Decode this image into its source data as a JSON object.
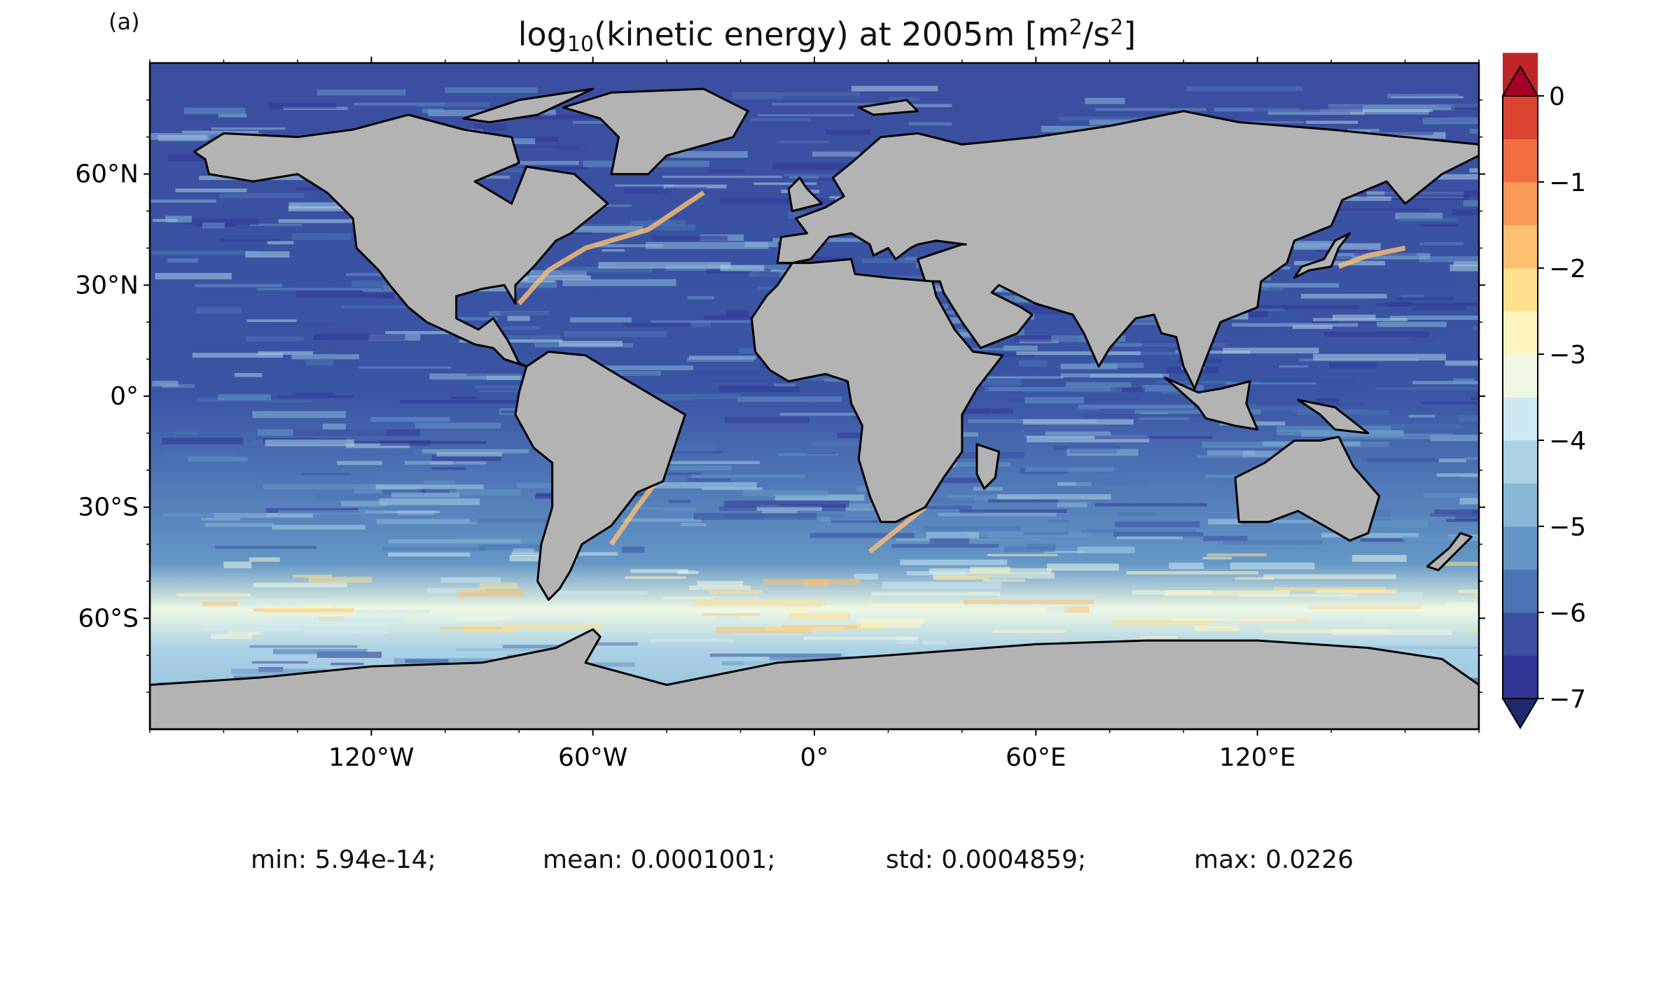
{
  "panel_label": "(a)",
  "title": {
    "pre": "log",
    "sub": "10",
    "mid": "(kinetic energy) at 2005m [m",
    "sup1": "2",
    "mid2": "/s",
    "sup2": "2",
    "post": "]"
  },
  "map": {
    "projection": "plate-carree",
    "lon_range": [
      -180,
      180
    ],
    "lat_range": [
      -90,
      90
    ],
    "land_color": "#b3b3b3",
    "coastline_color": "#000000",
    "no_data_color": "#ffffff",
    "lat_ticks": [
      {
        "value": 60,
        "label": "60°N"
      },
      {
        "value": 30,
        "label": "30°N"
      },
      {
        "value": 0,
        "label": "0°"
      },
      {
        "value": -30,
        "label": "30°S"
      },
      {
        "value": -60,
        "label": "60°S"
      }
    ],
    "lon_ticks": [
      {
        "value": -120,
        "label": "120°W"
      },
      {
        "value": -60,
        "label": "60°W"
      },
      {
        "value": 0,
        "label": "0°"
      },
      {
        "value": 60,
        "label": "60°E"
      },
      {
        "value": 120,
        "label": "120°E"
      }
    ]
  },
  "chart_data": {
    "type": "heatmap",
    "variable": "log10(kinetic energy) at 2005m [m2/s2]",
    "colorbar": {
      "min": -7,
      "max": 0,
      "extend": "both",
      "levels_step": 0.5,
      "tick_values": [
        0,
        -1,
        -2,
        -3,
        -4,
        -5,
        -6,
        -7
      ],
      "tick_labels": [
        "0",
        "−1",
        "−2",
        "−3",
        "−4",
        "−5",
        "−6",
        "−7"
      ],
      "colors": [
        "#313695",
        "#3b4ea0",
        "#4a74b4",
        "#6497c6",
        "#8ab9d8",
        "#abd1e5",
        "#cfe9f2",
        "#eef8e4",
        "#fff5be",
        "#fee08f",
        "#fdc070",
        "#fa9a58",
        "#f16e43",
        "#db4430",
        "#bf2427"
      ],
      "over_color": "#a50026",
      "under_color": "#1d2a6e"
    }
  },
  "stats": {
    "min": "min: 5.94e-14;",
    "mean": "mean: 0.0001001;",
    "std": "std: 0.0004859;",
    "max": "max: 0.0226"
  }
}
